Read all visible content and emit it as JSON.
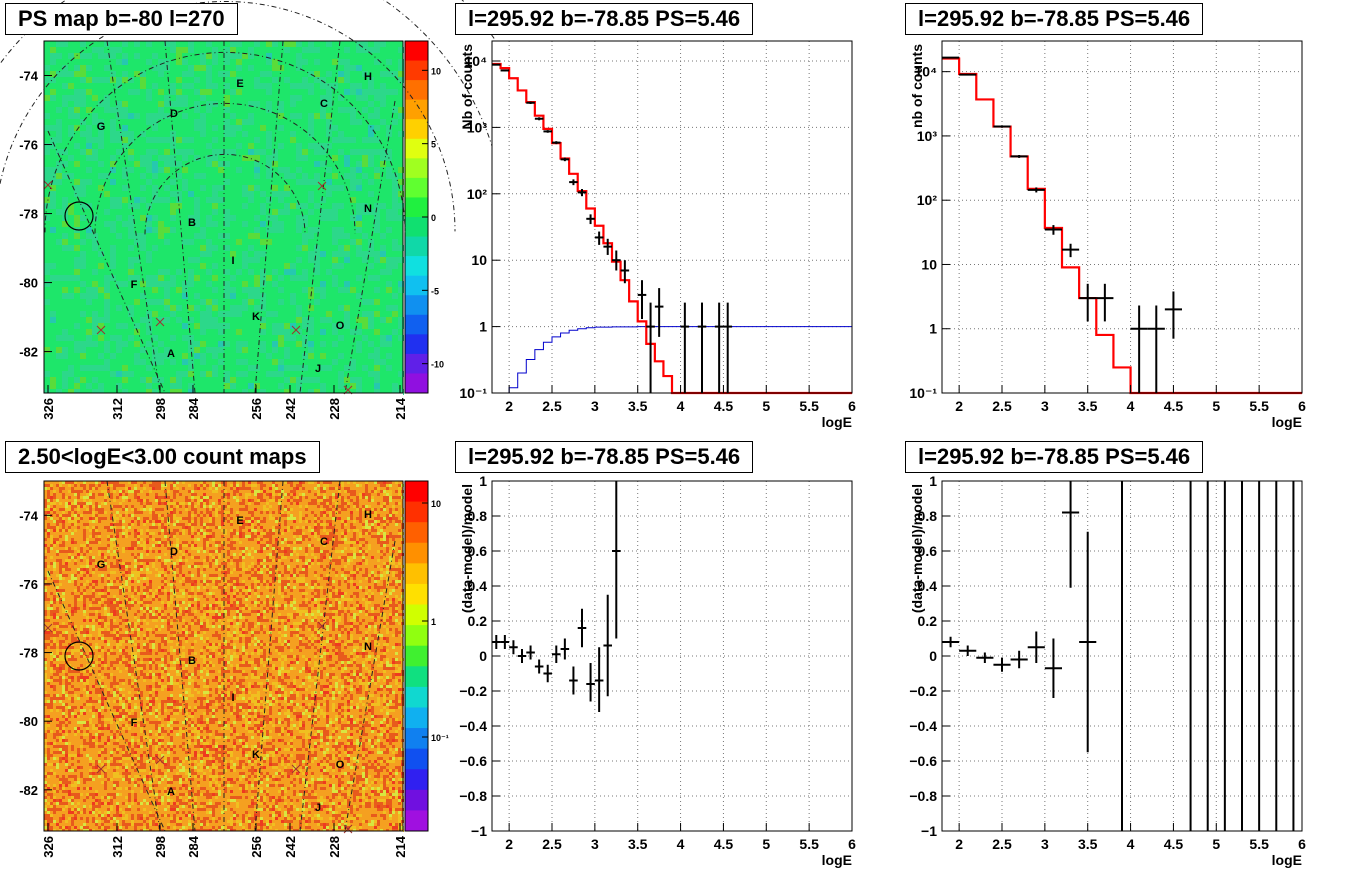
{
  "panels": {
    "ps_map": {
      "title": "PS map b=-80 l=270",
      "y_ticks": [
        "-74",
        "-76",
        "-78",
        "-80",
        "-82"
      ],
      "y_tick_values": [
        -74,
        -76,
        -78,
        -80,
        -82
      ],
      "x_ticks": [
        "326",
        "312",
        "298",
        "284",
        "256",
        "242",
        "228",
        "214"
      ],
      "region_labels": [
        "E",
        "H",
        "D",
        "C",
        "G",
        "N",
        "B",
        "I",
        "F",
        "K",
        "O",
        "A",
        "J"
      ],
      "colorbar_ticks": [
        "10",
        "5",
        "0",
        "-5",
        "-10"
      ],
      "colorbar_tick_values": [
        10,
        5,
        0,
        -5,
        -10
      ],
      "colorbar_range": [
        -12,
        12
      ],
      "colors": {
        "background": "#1ee66a",
        "noise": "#35d888"
      }
    },
    "count_map": {
      "title": "2.50<logE<3.00 count maps",
      "y_ticks": [
        "-74",
        "-76",
        "-78",
        "-80",
        "-82"
      ],
      "y_tick_values": [
        -74,
        -76,
        -78,
        -80,
        -82
      ],
      "x_ticks": [
        "326",
        "312",
        "298",
        "284",
        "256",
        "242",
        "228",
        "214"
      ],
      "region_labels": [
        "E",
        "H",
        "D",
        "C",
        "G",
        "N",
        "B",
        "I",
        "F",
        "K",
        "O",
        "A",
        "J"
      ],
      "colorbar_ticks": [
        "10",
        "1",
        "10⁻¹"
      ],
      "colorbar_tick_values": [
        10,
        1,
        0.1
      ],
      "colors": {
        "background": "#f5a020",
        "high": "#e8401a",
        "low": "#d8e040"
      }
    }
  },
  "chart_data": [
    {
      "id": "spectrum_left",
      "type": "line",
      "title": "l=295.92 b=-78.85 PS=5.46",
      "xlabel": "logE",
      "ylabel": "Nb of counts",
      "xlim": [
        1.8,
        6
      ],
      "ylim": [
        0.1,
        20000
      ],
      "yscale": "log",
      "x_ticks": [
        2,
        2.5,
        3,
        3.5,
        4,
        4.5,
        5,
        5.5,
        6
      ],
      "x_tick_labels": [
        "2",
        "2.5",
        "3",
        "3.5",
        "4",
        "4.5",
        "5",
        "5.5",
        "6"
      ],
      "y_ticks": [
        0.1,
        1,
        10,
        100,
        1000,
        10000
      ],
      "y_tick_labels": [
        "10⁻¹",
        "1",
        "10",
        "10²",
        "10³",
        "10⁴"
      ],
      "grid": true,
      "model_step": {
        "edges": [
          1.8,
          1.9,
          2.0,
          2.1,
          2.2,
          2.3,
          2.4,
          2.5,
          2.6,
          2.7,
          2.8,
          2.9,
          3.0,
          3.1,
          3.2,
          3.3,
          3.4,
          3.5,
          3.6,
          3.7,
          3.8,
          3.9,
          4.0,
          4.1,
          4.2,
          4.3,
          4.4,
          4.5,
          4.6,
          6.0
        ],
        "values": [
          9000,
          7800,
          5500,
          3600,
          2400,
          1500,
          950,
          580,
          340,
          200,
          110,
          60,
          33,
          18,
          9.5,
          5,
          2.4,
          1.2,
          0.55,
          0.3,
          0.18,
          0.1,
          0.1,
          0.1,
          0.1,
          0.1,
          0.1,
          0.1,
          0.1
        ],
        "color": "#ff0000"
      },
      "exposure_step": {
        "edges": [
          1.8,
          2.0,
          2.1,
          2.2,
          2.3,
          2.4,
          2.5,
          2.6,
          2.7,
          2.8,
          2.9,
          3.0,
          3.2,
          3.5,
          6.0
        ],
        "values": [
          0.1,
          0.12,
          0.2,
          0.32,
          0.45,
          0.58,
          0.7,
          0.8,
          0.88,
          0.93,
          0.96,
          0.98,
          0.99,
          1.0
        ],
        "color": "#0000cc"
      },
      "points": [
        {
          "x": 1.85,
          "y": 8800,
          "xerr": 0.05,
          "ylo": 8600,
          "yhi": 9000
        },
        {
          "x": 1.95,
          "y": 7200,
          "xerr": 0.05,
          "ylo": 7000,
          "yhi": 7400
        },
        {
          "x": 2.25,
          "y": 2350,
          "xerr": 0.05,
          "ylo": 2250,
          "yhi": 2450
        },
        {
          "x": 2.35,
          "y": 1350,
          "xerr": 0.05,
          "ylo": 1280,
          "yhi": 1420
        },
        {
          "x": 2.45,
          "y": 870,
          "xerr": 0.05,
          "ylo": 830,
          "yhi": 910
        },
        {
          "x": 2.55,
          "y": 590,
          "xerr": 0.05,
          "ylo": 560,
          "yhi": 620
        },
        {
          "x": 2.65,
          "y": 330,
          "xerr": 0.05,
          "ylo": 310,
          "yhi": 350
        },
        {
          "x": 2.75,
          "y": 150,
          "xerr": 0.05,
          "ylo": 135,
          "yhi": 165
        },
        {
          "x": 2.85,
          "y": 105,
          "xerr": 0.05,
          "ylo": 92,
          "yhi": 118
        },
        {
          "x": 2.95,
          "y": 42,
          "xerr": 0.05,
          "ylo": 35,
          "yhi": 49
        },
        {
          "x": 3.05,
          "y": 22,
          "xerr": 0.05,
          "ylo": 17,
          "yhi": 27
        },
        {
          "x": 3.15,
          "y": 16,
          "xerr": 0.05,
          "ylo": 12,
          "yhi": 21
        },
        {
          "x": 3.25,
          "y": 10,
          "xerr": 0.05,
          "ylo": 7,
          "yhi": 14
        },
        {
          "x": 3.35,
          "y": 7,
          "xerr": 0.05,
          "ylo": 4.5,
          "yhi": 10
        },
        {
          "x": 3.55,
          "y": 3,
          "xerr": 0.05,
          "ylo": 1.3,
          "yhi": 5
        },
        {
          "x": 3.65,
          "y": 1,
          "xerr": 0.05,
          "ylo": 0.1,
          "yhi": 2.3
        },
        {
          "x": 3.75,
          "y": 2,
          "xerr": 0.05,
          "ylo": 0.7,
          "yhi": 3.8
        },
        {
          "x": 4.05,
          "y": 1,
          "xerr": 0.05,
          "ylo": 0.1,
          "yhi": 2.3
        },
        {
          "x": 4.25,
          "y": 1,
          "xerr": 0.05,
          "ylo": 0.1,
          "yhi": 2.3
        },
        {
          "x": 4.45,
          "y": 1,
          "xerr": 0.05,
          "ylo": 0.1,
          "yhi": 2.3
        },
        {
          "x": 4.55,
          "y": 1,
          "xerr": 0.05,
          "ylo": 0.1,
          "yhi": 2.3
        }
      ]
    },
    {
      "id": "spectrum_right",
      "type": "line",
      "title": "l=295.92 b=-78.85 PS=5.46",
      "xlabel": "logE",
      "ylabel": "nb of counts",
      "xlim": [
        1.8,
        6
      ],
      "ylim": [
        0.1,
        30000
      ],
      "yscale": "log",
      "x_ticks": [
        2,
        2.5,
        3,
        3.5,
        4,
        4.5,
        5,
        5.5,
        6
      ],
      "x_tick_labels": [
        "2",
        "2.5",
        "3",
        "3.5",
        "4",
        "4.5",
        "5",
        "5.5",
        "6"
      ],
      "y_ticks": [
        0.1,
        1,
        10,
        100,
        1000,
        10000
      ],
      "y_tick_labels": [
        "10⁻¹",
        "1",
        "10",
        "10²",
        "10³",
        "10⁴"
      ],
      "grid": true,
      "model_step": {
        "edges": [
          1.8,
          2.0,
          2.2,
          2.4,
          2.6,
          2.8,
          3.0,
          3.2,
          3.4,
          3.6,
          3.8,
          4.0,
          4.2,
          6.0
        ],
        "values": [
          16000,
          9200,
          3700,
          1400,
          480,
          150,
          37,
          9,
          3,
          0.8,
          0.25,
          0.1,
          0.1
        ],
        "color": "#ff0000"
      },
      "points": [
        {
          "x": 1.9,
          "y": 16500,
          "xerr": 0.1,
          "ylo": 16200,
          "yhi": 16800
        },
        {
          "x": 2.1,
          "y": 9000,
          "xerr": 0.1,
          "ylo": 8800,
          "yhi": 9200
        },
        {
          "x": 2.5,
          "y": 1400,
          "xerr": 0.1,
          "ylo": 1340,
          "yhi": 1460
        },
        {
          "x": 2.7,
          "y": 480,
          "xerr": 0.1,
          "ylo": 455,
          "yhi": 505
        },
        {
          "x": 2.9,
          "y": 145,
          "xerr": 0.1,
          "ylo": 132,
          "yhi": 158
        },
        {
          "x": 3.1,
          "y": 35,
          "xerr": 0.1,
          "ylo": 29,
          "yhi": 41
        },
        {
          "x": 3.3,
          "y": 17,
          "xerr": 0.1,
          "ylo": 13,
          "yhi": 21
        },
        {
          "x": 3.5,
          "y": 3,
          "xerr": 0.1,
          "ylo": 1.3,
          "yhi": 5
        },
        {
          "x": 3.7,
          "y": 3,
          "xerr": 0.1,
          "ylo": 1.3,
          "yhi": 5
        },
        {
          "x": 4.1,
          "y": 1,
          "xerr": 0.1,
          "ylo": 0.1,
          "yhi": 2.3
        },
        {
          "x": 4.3,
          "y": 1,
          "xerr": 0.1,
          "ylo": 0.1,
          "yhi": 2.3
        },
        {
          "x": 4.5,
          "y": 2,
          "xerr": 0.1,
          "ylo": 0.7,
          "yhi": 3.8
        }
      ]
    },
    {
      "id": "residual_left",
      "type": "scatter",
      "title": "l=295.92 b=-78.85 PS=5.46",
      "xlabel": "logE",
      "ylabel": "(data-model)/model",
      "xlim": [
        1.8,
        6
      ],
      "ylim": [
        -1,
        1
      ],
      "x_ticks": [
        2,
        2.5,
        3,
        3.5,
        4,
        4.5,
        5,
        5.5,
        6
      ],
      "x_tick_labels": [
        "2",
        "2.5",
        "3",
        "3.5",
        "4",
        "4.5",
        "5",
        "5.5",
        "6"
      ],
      "y_ticks": [
        -1,
        -0.8,
        -0.6,
        -0.4,
        -0.2,
        0,
        0.2,
        0.4,
        0.6,
        0.8,
        1
      ],
      "y_tick_labels": [
        "−1",
        "−0.8",
        "−0.6",
        "−0.4",
        "−0.2",
        "0",
        "0.2",
        "0.4",
        "0.6",
        "0.8",
        "1"
      ],
      "grid": true,
      "points": [
        {
          "x": 1.85,
          "y": 0.08,
          "xerr": 0.05,
          "ylo": 0.04,
          "yhi": 0.12
        },
        {
          "x": 1.95,
          "y": 0.08,
          "xerr": 0.05,
          "ylo": 0.04,
          "yhi": 0.12
        },
        {
          "x": 2.05,
          "y": 0.05,
          "xerr": 0.05,
          "ylo": 0.01,
          "yhi": 0.09
        },
        {
          "x": 2.15,
          "y": 0.0,
          "xerr": 0.05,
          "ylo": -0.04,
          "yhi": 0.04
        },
        {
          "x": 2.25,
          "y": 0.02,
          "xerr": 0.05,
          "ylo": -0.02,
          "yhi": 0.06
        },
        {
          "x": 2.35,
          "y": -0.06,
          "xerr": 0.05,
          "ylo": -0.1,
          "yhi": -0.02
        },
        {
          "x": 2.45,
          "y": -0.1,
          "xerr": 0.05,
          "ylo": -0.15,
          "yhi": -0.05
        },
        {
          "x": 2.55,
          "y": 0.01,
          "xerr": 0.05,
          "ylo": -0.04,
          "yhi": 0.06
        },
        {
          "x": 2.65,
          "y": 0.04,
          "xerr": 0.05,
          "ylo": -0.02,
          "yhi": 0.1
        },
        {
          "x": 2.75,
          "y": -0.14,
          "xerr": 0.05,
          "ylo": -0.22,
          "yhi": -0.06
        },
        {
          "x": 2.85,
          "y": 0.16,
          "xerr": 0.05,
          "ylo": 0.05,
          "yhi": 0.27
        },
        {
          "x": 2.95,
          "y": -0.16,
          "xerr": 0.05,
          "ylo": -0.26,
          "yhi": -0.04
        },
        {
          "x": 3.05,
          "y": -0.14,
          "xerr": 0.05,
          "ylo": -0.32,
          "yhi": 0.05
        },
        {
          "x": 3.15,
          "y": 0.06,
          "xerr": 0.05,
          "ylo": -0.23,
          "yhi": 0.35
        },
        {
          "x": 3.25,
          "y": 0.6,
          "xerr": 0.05,
          "ylo": 0.1,
          "yhi": 1.0
        }
      ]
    },
    {
      "id": "residual_right",
      "type": "scatter",
      "title": "l=295.92 b=-78.85 PS=5.46",
      "xlabel": "logE",
      "ylabel": "(data-model)/model",
      "xlim": [
        1.8,
        6
      ],
      "ylim": [
        -1,
        1
      ],
      "x_ticks": [
        2,
        2.5,
        3,
        3.5,
        4,
        4.5,
        5,
        5.5,
        6
      ],
      "x_tick_labels": [
        "2",
        "2.5",
        "3",
        "3.5",
        "4",
        "4.5",
        "5",
        "5.5",
        "6"
      ],
      "y_ticks": [
        -1,
        -0.8,
        -0.6,
        -0.4,
        -0.2,
        0,
        0.2,
        0.4,
        0.6,
        0.8,
        1
      ],
      "y_tick_labels": [
        "−1",
        "−0.8",
        "−0.6",
        "−0.4",
        "−0.2",
        "0",
        "0.2",
        "0.4",
        "0.6",
        "0.8",
        "1"
      ],
      "grid": true,
      "points": [
        {
          "x": 1.9,
          "y": 0.08,
          "xerr": 0.1,
          "ylo": 0.05,
          "yhi": 0.11
        },
        {
          "x": 2.1,
          "y": 0.03,
          "xerr": 0.1,
          "ylo": 0.0,
          "yhi": 0.06
        },
        {
          "x": 2.3,
          "y": -0.01,
          "xerr": 0.1,
          "ylo": -0.04,
          "yhi": 0.02
        },
        {
          "x": 2.5,
          "y": -0.05,
          "xerr": 0.1,
          "ylo": -0.09,
          "yhi": -0.01
        },
        {
          "x": 2.7,
          "y": -0.02,
          "xerr": 0.1,
          "ylo": -0.07,
          "yhi": 0.03
        },
        {
          "x": 2.9,
          "y": 0.05,
          "xerr": 0.1,
          "ylo": -0.04,
          "yhi": 0.14
        },
        {
          "x": 3.1,
          "y": -0.07,
          "xerr": 0.1,
          "ylo": -0.24,
          "yhi": 0.1
        },
        {
          "x": 3.3,
          "y": 0.82,
          "xerr": 0.1,
          "ylo": 0.39,
          "yhi": 1.0
        },
        {
          "x": 3.5,
          "y": 0.08,
          "xerr": 0.1,
          "ylo": -0.55,
          "yhi": 0.71
        },
        {
          "x": 3.9,
          "y": 1.0,
          "xerr": 0,
          "ylo": -1.0,
          "yhi": 1.0
        },
        {
          "x": 4.7,
          "y": 1.0,
          "xerr": 0,
          "ylo": -1.0,
          "yhi": 1.0
        },
        {
          "x": 4.9,
          "y": 1.0,
          "xerr": 0,
          "ylo": -1.0,
          "yhi": 1.0
        },
        {
          "x": 5.1,
          "y": 1.0,
          "xerr": 0,
          "ylo": -1.0,
          "yhi": 1.0
        },
        {
          "x": 5.3,
          "y": 1.0,
          "xerr": 0,
          "ylo": -1.0,
          "yhi": 1.0
        },
        {
          "x": 5.5,
          "y": 1.0,
          "xerr": 0,
          "ylo": -1.0,
          "yhi": 1.0
        },
        {
          "x": 5.7,
          "y": 1.0,
          "xerr": 0,
          "ylo": -1.0,
          "yhi": 1.0
        },
        {
          "x": 5.9,
          "y": 1.0,
          "xerr": 0,
          "ylo": -1.0,
          "yhi": 1.0
        }
      ]
    }
  ]
}
